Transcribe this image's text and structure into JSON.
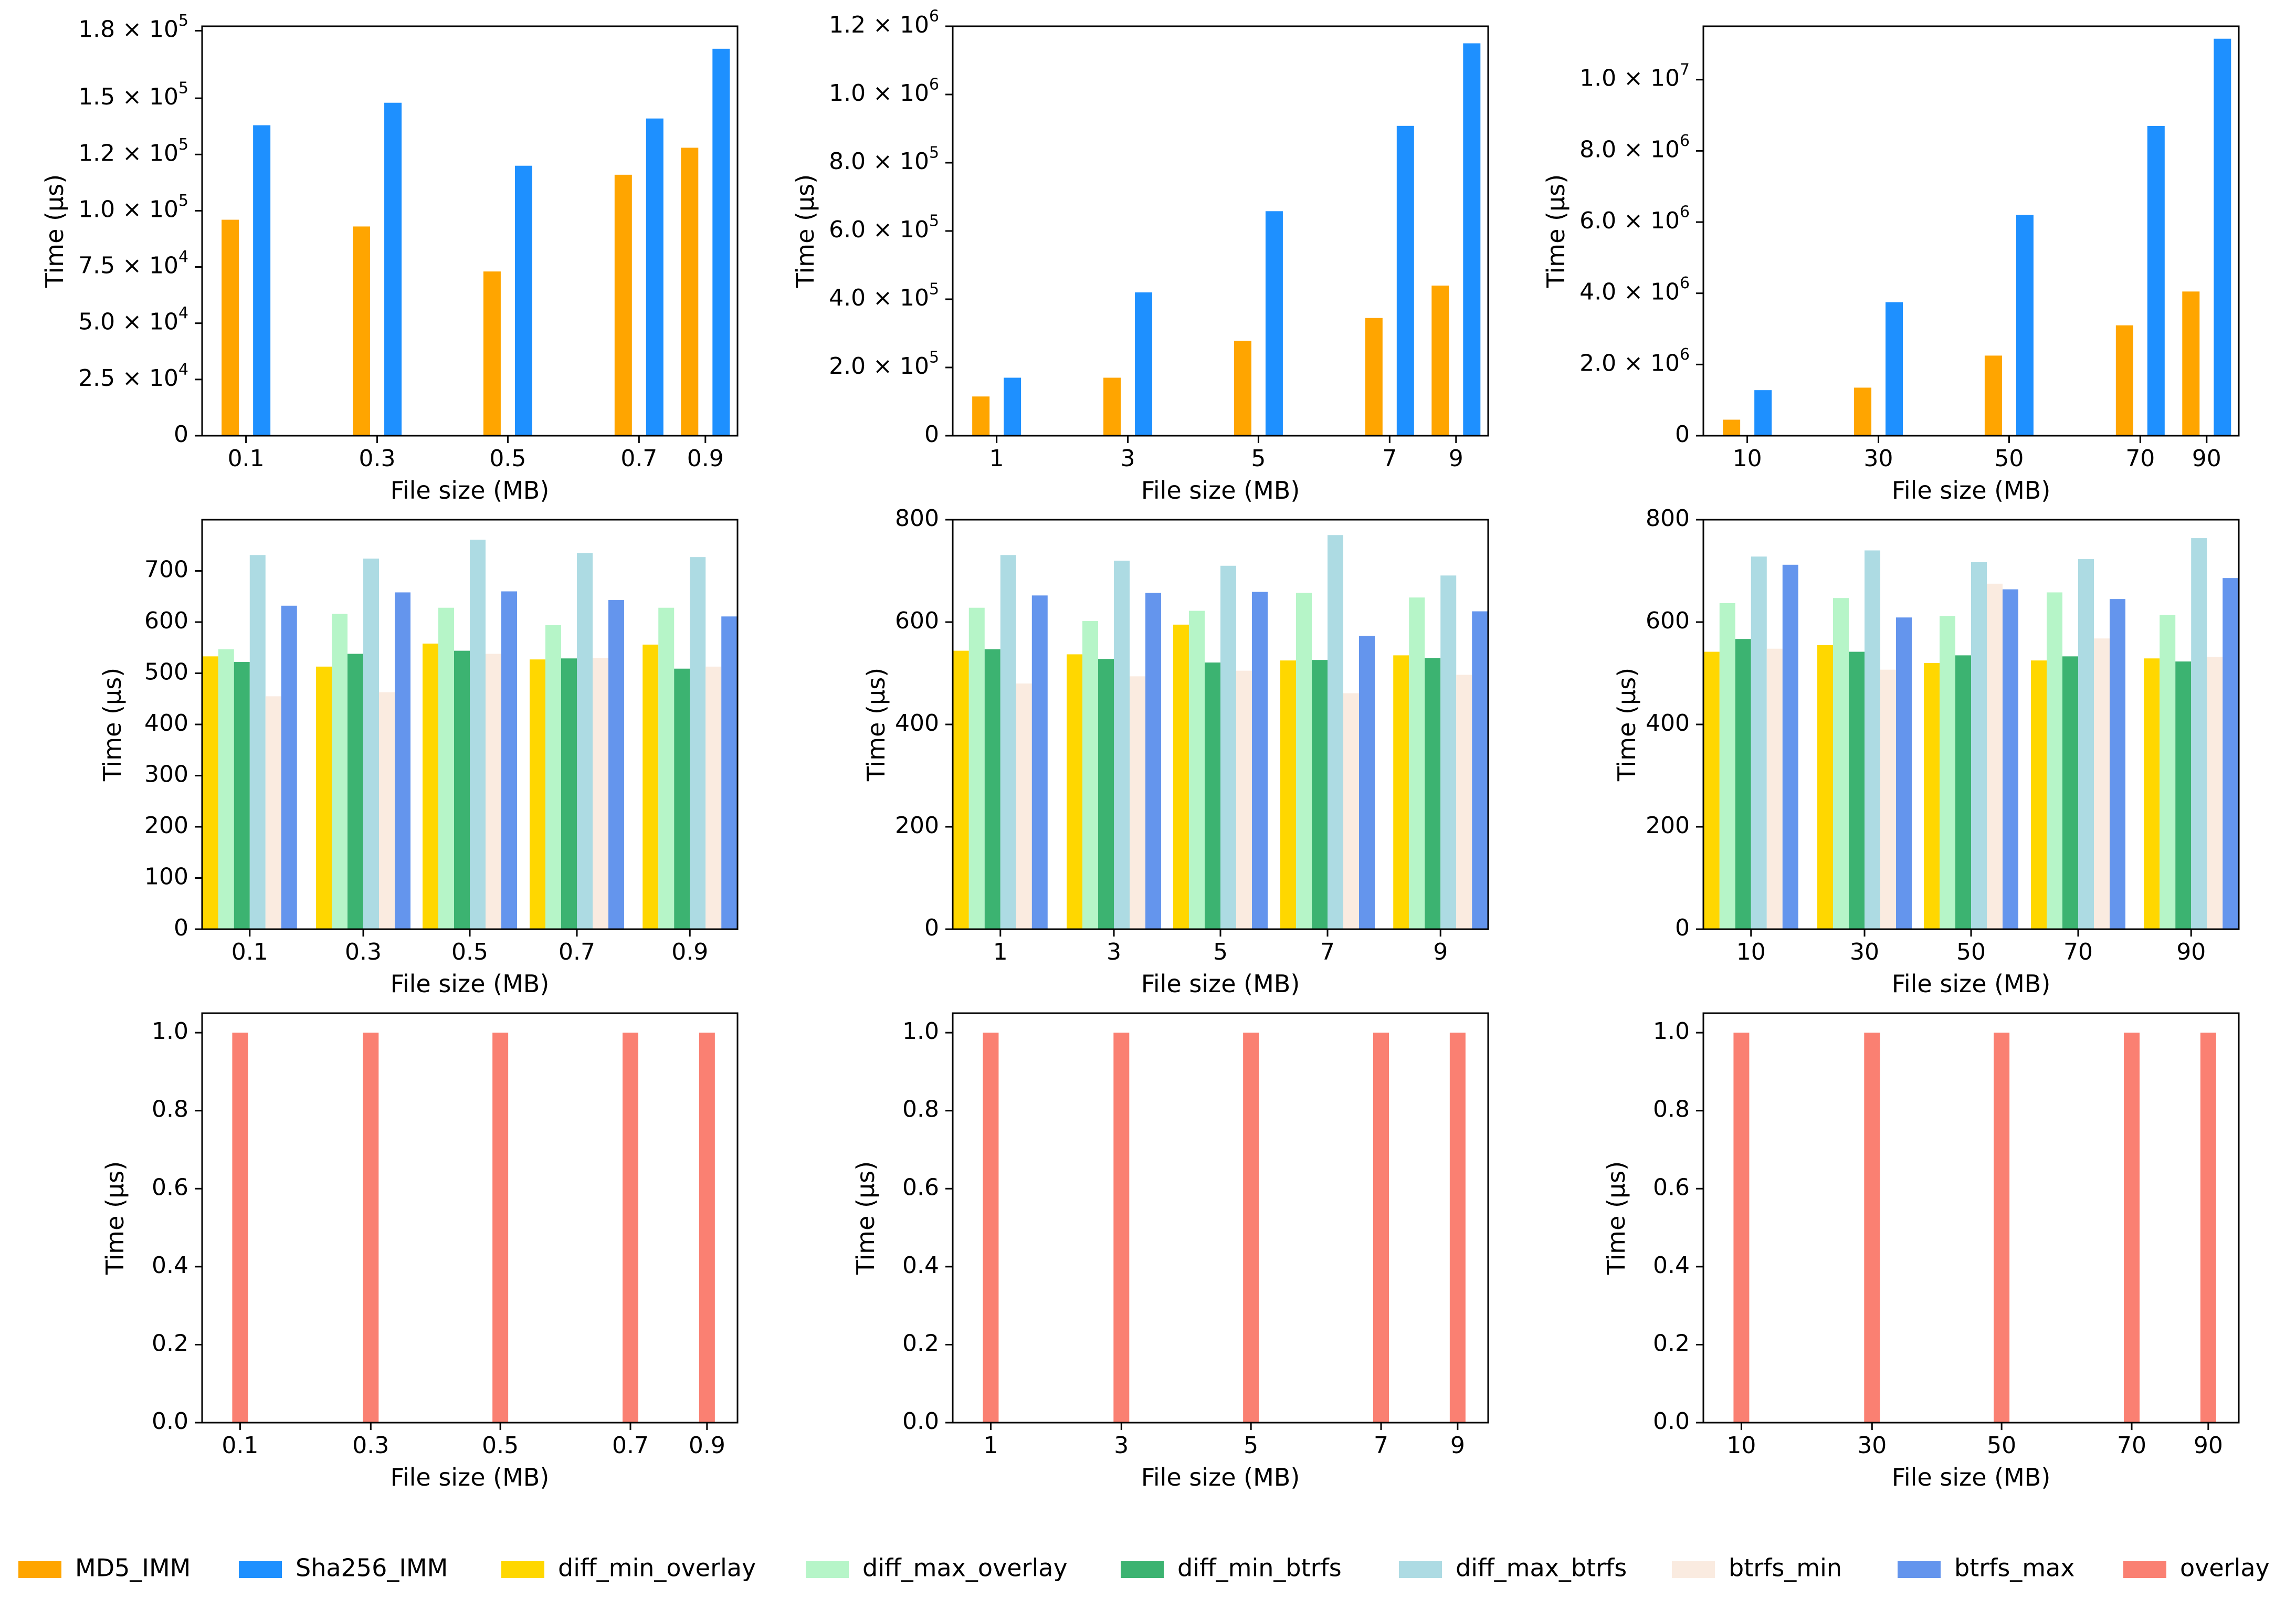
{
  "colors": {
    "MD5_IMM": "#FFA500",
    "Sha256_IMM": "#1E90FF",
    "diff_min_overlay": "#FFD700",
    "diff_max_overlay": "#B6F5C8",
    "diff_min_btrfs": "#3CB371",
    "diff_max_btrfs": "#ADDBE3",
    "btrfs_min": "#FAEBE0",
    "btrfs_max": "#6495ED",
    "overlay": "#FA8072"
  },
  "legend": {
    "items": [
      "MD5_IMM",
      "Sha256_IMM",
      "diff_min_overlay",
      "diff_max_overlay",
      "diff_min_btrfs",
      "diff_max_btrfs",
      "btrfs_min",
      "btrfs_max",
      "overlay"
    ]
  },
  "chart_data": [
    {
      "type": "bar",
      "title": "",
      "xlabel": "File size (MB)",
      "ylabel": "Time (µs)",
      "categories": [
        "0.1",
        "0.3",
        "0.5",
        "0.7",
        "0.9"
      ],
      "ylim": [
        0,
        182000
      ],
      "yticks": [
        0,
        25000,
        50000,
        75000,
        100000,
        125000,
        150000,
        180000
      ],
      "yticklabels": [
        "0",
        "2.5 × 10^4",
        "5.0 × 10^4",
        "7.5 × 10^4",
        "1.0 × 10^5",
        "1.2 × 10^5",
        "1.5 × 10^5",
        "1.8 × 10^5"
      ],
      "series": [
        {
          "name": "MD5_IMM",
          "values": [
            96000,
            93000,
            73000,
            116000,
            128000
          ]
        },
        {
          "name": "Sha256_IMM",
          "values": [
            138000,
            148000,
            120000,
            141000,
            172000
          ]
        }
      ]
    },
    {
      "type": "bar",
      "title": "",
      "xlabel": "File size (MB)",
      "ylabel": "Time (µs)",
      "categories": [
        "1",
        "3",
        "5",
        "7",
        "9"
      ],
      "ylim": [
        0,
        1200000
      ],
      "yticks": [
        0,
        200000,
        400000,
        600000,
        800000,
        1000000,
        1200000
      ],
      "yticklabels": [
        "0",
        "2.0 × 10^5",
        "4.0 × 10^5",
        "6.0 × 10^5",
        "8.0 × 10^5",
        "1.0 × 10^6",
        "1.2 × 10^6"
      ],
      "series": [
        {
          "name": "MD5_IMM",
          "values": [
            115000,
            170000,
            278000,
            345000,
            440000
          ]
        },
        {
          "name": "Sha256_IMM",
          "values": [
            170000,
            420000,
            658000,
            908000,
            1150000
          ]
        }
      ]
    },
    {
      "type": "bar",
      "title": "",
      "xlabel": "File size (MB)",
      "ylabel": "Time (µs)",
      "categories": [
        "10",
        "30",
        "50",
        "70",
        "90"
      ],
      "ylim": [
        0,
        11500000
      ],
      "yticks": [
        0,
        2000000,
        4000000,
        6000000,
        8000000,
        10000000
      ],
      "yticklabels": [
        "0",
        "2.0 × 10^6",
        "4.0 × 10^6",
        "6.0 × 10^6",
        "8.0 × 10^6",
        "1.0 × 10^7"
      ],
      "series": [
        {
          "name": "MD5_IMM",
          "values": [
            450000,
            1350000,
            2250000,
            3100000,
            4050000
          ]
        },
        {
          "name": "Sha256_IMM",
          "values": [
            1280000,
            3750000,
            6200000,
            8700000,
            11150000
          ]
        }
      ]
    },
    {
      "type": "bar",
      "title": "",
      "xlabel": "File size (MB)",
      "ylabel": "Time (µs)",
      "categories": [
        "0.1",
        "0.3",
        "0.5",
        "0.7",
        "0.9"
      ],
      "ylim": [
        0,
        800
      ],
      "yticks": [
        0,
        100,
        200,
        300,
        400,
        500,
        600,
        700
      ],
      "yticklabels": [
        "0",
        "100",
        "200",
        "300",
        "400",
        "500",
        "600",
        "700"
      ],
      "series": [
        {
          "name": "diff_min_overlay",
          "values": [
            533,
            513,
            558,
            527,
            556
          ]
        },
        {
          "name": "diff_max_overlay",
          "values": [
            547,
            616,
            628,
            594,
            628
          ]
        },
        {
          "name": "diff_min_btrfs",
          "values": [
            522,
            538,
            544,
            529,
            509
          ]
        },
        {
          "name": "diff_max_btrfs",
          "values": [
            731,
            724,
            761,
            735,
            727
          ]
        },
        {
          "name": "btrfs_min",
          "values": [
            455,
            463,
            538,
            530,
            513
          ]
        },
        {
          "name": "btrfs_max",
          "values": [
            632,
            658,
            660,
            643,
            611
          ]
        }
      ]
    },
    {
      "type": "bar",
      "title": "",
      "xlabel": "File size (MB)",
      "ylabel": "Time (µs)",
      "categories": [
        "1",
        "3",
        "5",
        "7",
        "9"
      ],
      "ylim": [
        0,
        800
      ],
      "yticks": [
        0,
        200,
        400,
        600,
        800
      ],
      "yticklabels": [
        "0",
        "200",
        "400",
        "600",
        "800"
      ],
      "series": [
        {
          "name": "diff_min_overlay",
          "values": [
            544,
            537,
            595,
            525,
            535
          ]
        },
        {
          "name": "diff_max_overlay",
          "values": [
            628,
            602,
            622,
            657,
            648
          ]
        },
        {
          "name": "diff_min_btrfs",
          "values": [
            547,
            528,
            521,
            526,
            530
          ]
        },
        {
          "name": "diff_max_btrfs",
          "values": [
            731,
            720,
            710,
            770,
            691
          ]
        },
        {
          "name": "btrfs_min",
          "values": [
            480,
            494,
            505,
            461,
            497
          ]
        },
        {
          "name": "btrfs_max",
          "values": [
            652,
            657,
            659,
            573,
            621
          ]
        }
      ]
    },
    {
      "type": "bar",
      "title": "",
      "xlabel": "File size (MB)",
      "ylabel": "Time (µs)",
      "categories": [
        "10",
        "30",
        "50",
        "70",
        "90"
      ],
      "ylim": [
        0,
        800
      ],
      "yticks": [
        0,
        200,
        400,
        600,
        800
      ],
      "yticklabels": [
        "0",
        "200",
        "400",
        "600",
        "800"
      ],
      "series": [
        {
          "name": "diff_min_overlay",
          "values": [
            542,
            555,
            520,
            525,
            529
          ]
        },
        {
          "name": "diff_max_overlay",
          "values": [
            637,
            647,
            612,
            658,
            614
          ]
        },
        {
          "name": "diff_min_btrfs",
          "values": [
            567,
            542,
            535,
            533,
            523
          ]
        },
        {
          "name": "diff_max_btrfs",
          "values": [
            728,
            740,
            717,
            723,
            764
          ]
        },
        {
          "name": "btrfs_min",
          "values": [
            548,
            507,
            675,
            568,
            532
          ]
        },
        {
          "name": "btrfs_max",
          "values": [
            712,
            609,
            664,
            645,
            686
          ]
        }
      ]
    },
    {
      "type": "bar",
      "title": "",
      "xlabel": "File size (MB)",
      "ylabel": "Time (µs)",
      "categories": [
        "0.1",
        "0.3",
        "0.5",
        "0.7",
        "0.9"
      ],
      "ylim": [
        0,
        1.05
      ],
      "yticks": [
        0,
        0.2,
        0.4,
        0.6,
        0.8,
        1.0
      ],
      "yticklabels": [
        "0.0",
        "0.2",
        "0.4",
        "0.6",
        "0.8",
        "1.0"
      ],
      "series": [
        {
          "name": "overlay",
          "values": [
            1,
            1,
            1,
            1,
            1
          ]
        }
      ]
    },
    {
      "type": "bar",
      "title": "",
      "xlabel": "File size (MB)",
      "ylabel": "Time (µs)",
      "categories": [
        "1",
        "3",
        "5",
        "7",
        "9"
      ],
      "ylim": [
        0,
        1.05
      ],
      "yticks": [
        0,
        0.2,
        0.4,
        0.6,
        0.8,
        1.0
      ],
      "yticklabels": [
        "0.0",
        "0.2",
        "0.4",
        "0.6",
        "0.8",
        "1.0"
      ],
      "series": [
        {
          "name": "overlay",
          "values": [
            1,
            1,
            1,
            1,
            1
          ]
        }
      ]
    },
    {
      "type": "bar",
      "title": "",
      "xlabel": "File size (MB)",
      "ylabel": "Time (µs)",
      "categories": [
        "10",
        "30",
        "50",
        "70",
        "90"
      ],
      "ylim": [
        0,
        1.05
      ],
      "yticks": [
        0,
        0.2,
        0.4,
        0.6,
        0.8,
        1.0
      ],
      "yticklabels": [
        "0.0",
        "0.2",
        "0.4",
        "0.6",
        "0.8",
        "1.0"
      ],
      "series": [
        {
          "name": "overlay",
          "values": [
            1,
            1,
            1,
            1,
            1
          ]
        }
      ]
    }
  ]
}
